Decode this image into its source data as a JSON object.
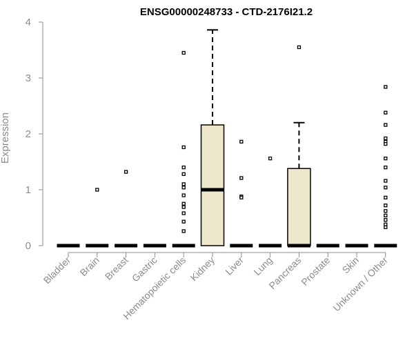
{
  "chart_data": {
    "type": "box",
    "title": "ENSG00000248733 - CTD-2176I21.2",
    "xlabel": "",
    "ylabel": "Expression",
    "ylim": [
      0,
      4
    ],
    "yticks": [
      0,
      1,
      2,
      3,
      4
    ],
    "grid": false,
    "legend": "none",
    "box_fill": "#ede7cc",
    "categories": [
      "Bladder",
      "Brain",
      "Breast",
      "Gastric",
      "Hematopoietic cells",
      "Kidney",
      "Liver",
      "Lung",
      "Pancreas",
      "Prostate",
      "Skin",
      "Unknown / Other"
    ],
    "boxes": [
      {
        "category": "Bladder",
        "q1": 0,
        "median": 0,
        "q3": 0,
        "whisker_low": 0,
        "whisker_high": 0,
        "outliers": []
      },
      {
        "category": "Brain",
        "q1": 0,
        "median": 0,
        "q3": 0,
        "whisker_low": 0,
        "whisker_high": 0,
        "outliers": [
          1.0
        ]
      },
      {
        "category": "Breast",
        "q1": 0,
        "median": 0,
        "q3": 0,
        "whisker_low": 0,
        "whisker_high": 0,
        "outliers": [
          1.32
        ]
      },
      {
        "category": "Gastric",
        "q1": 0,
        "median": 0,
        "q3": 0,
        "whisker_low": 0,
        "whisker_high": 0,
        "outliers": []
      },
      {
        "category": "Hematopoietic cells",
        "q1": 0,
        "median": 0,
        "q3": 0,
        "whisker_low": 0,
        "whisker_high": 0,
        "outliers": [
          3.45,
          1.76,
          1.4,
          1.28,
          1.1,
          1.04,
          0.9,
          0.75,
          0.69,
          0.58,
          0.43,
          0.26
        ]
      },
      {
        "category": "Kidney",
        "q1": 0,
        "median": 1.0,
        "q3": 2.16,
        "whisker_low": 0,
        "whisker_high": 3.86,
        "outliers": []
      },
      {
        "category": "Liver",
        "q1": 0,
        "median": 0,
        "q3": 0,
        "whisker_low": 0,
        "whisker_high": 0,
        "outliers": [
          1.86,
          1.21,
          0.88,
          0.86
        ]
      },
      {
        "category": "Lung",
        "q1": 0,
        "median": 0,
        "q3": 0,
        "whisker_low": 0,
        "whisker_high": 0,
        "outliers": [
          1.56
        ]
      },
      {
        "category": "Pancreas",
        "q1": 0,
        "median": 0,
        "q3": 1.38,
        "whisker_low": 0,
        "whisker_high": 2.2,
        "outliers": [
          3.55
        ]
      },
      {
        "category": "Prostate",
        "q1": 0,
        "median": 0,
        "q3": 0,
        "whisker_low": 0,
        "whisker_high": 0,
        "outliers": []
      },
      {
        "category": "Skin",
        "q1": 0,
        "median": 0,
        "q3": 0,
        "whisker_low": 0,
        "whisker_high": 0,
        "outliers": []
      },
      {
        "category": "Unknown / Other",
        "q1": 0,
        "median": 0,
        "q3": 0,
        "whisker_low": 0,
        "whisker_high": 0,
        "outliers": [
          2.84,
          2.38,
          2.16,
          1.92,
          1.86,
          1.82,
          1.56,
          1.4,
          1.16,
          1.04,
          0.86,
          0.72,
          0.62,
          0.54,
          0.46,
          0.38,
          0.33
        ]
      }
    ]
  }
}
